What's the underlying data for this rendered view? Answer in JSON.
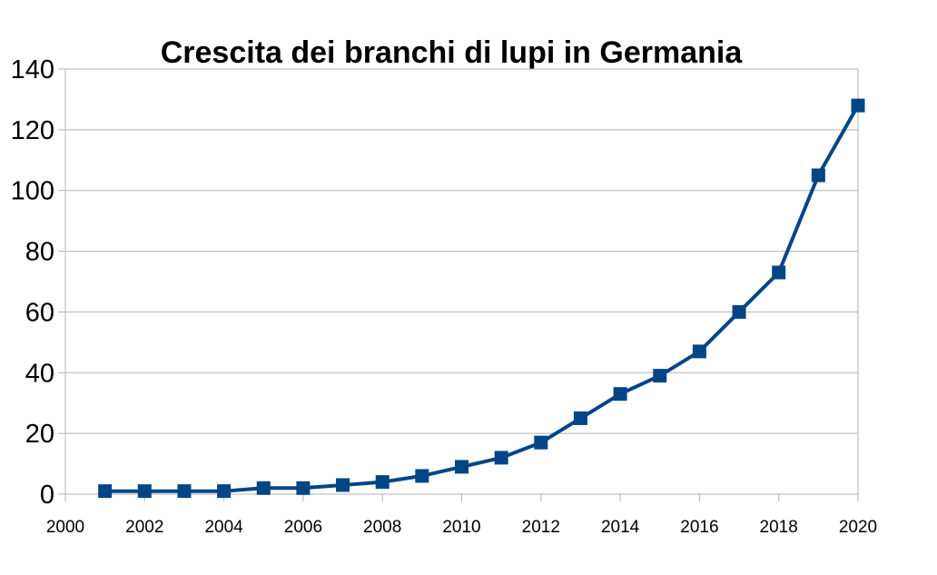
{
  "chart_data": {
    "type": "line",
    "title": "Crescita dei branchi di lupi in Germania",
    "xlabel": "",
    "ylabel": "",
    "xlim": [
      2000,
      2020
    ],
    "ylim": [
      0,
      140
    ],
    "x_ticks": [
      2000,
      2002,
      2004,
      2006,
      2008,
      2010,
      2012,
      2014,
      2016,
      2018,
      2020
    ],
    "y_ticks": [
      0,
      20,
      40,
      60,
      80,
      100,
      120,
      140
    ],
    "grid": true,
    "legend": "none",
    "series": [
      {
        "color": "#004586",
        "marker": "square",
        "x": [
          2001,
          2002,
          2003,
          2004,
          2005,
          2006,
          2007,
          2008,
          2009,
          2010,
          2011,
          2012,
          2013,
          2014,
          2015,
          2016,
          2017,
          2018,
          2019,
          2020
        ],
        "values": [
          1,
          1,
          1,
          1,
          2,
          2,
          3,
          4,
          6,
          9,
          12,
          17,
          25,
          33,
          39,
          47,
          60,
          73,
          105,
          128
        ]
      }
    ]
  }
}
